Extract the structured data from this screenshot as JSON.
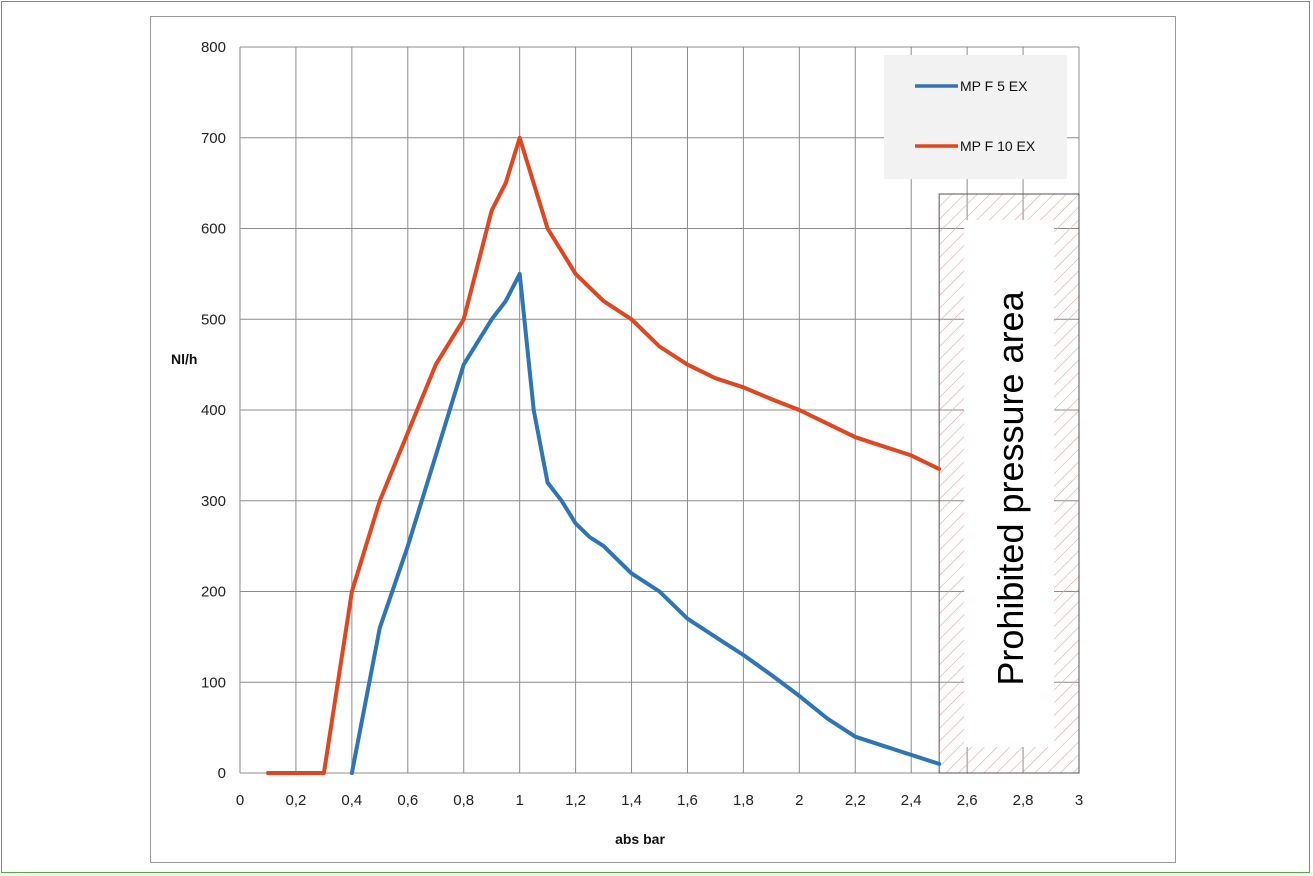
{
  "chart_data": {
    "type": "line",
    "xlabel": "abs bar",
    "ylabel": "Nl/h",
    "xlim": [
      0,
      3
    ],
    "ylim": [
      0,
      800
    ],
    "grid": true,
    "legend_position": "top-right",
    "x_ticks": [
      0,
      0.2,
      0.4,
      0.6,
      0.8,
      1,
      1.2,
      1.4,
      1.6,
      1.8,
      2,
      2.2,
      2.4,
      2.6,
      2.8,
      3
    ],
    "x_tick_labels": [
      "0",
      "0,2",
      "0,4",
      "0,6",
      "0,8",
      "1",
      "1,2",
      "1,4",
      "1,6",
      "1,8",
      "2",
      "2,2",
      "2,4",
      "2,6",
      "2,8",
      "3"
    ],
    "y_ticks": [
      0,
      100,
      200,
      300,
      400,
      500,
      600,
      700,
      800
    ],
    "y_tick_labels": [
      "0",
      "100",
      "200",
      "300",
      "400",
      "500",
      "600",
      "700",
      "800"
    ],
    "series": [
      {
        "name": "MP F 5 EX",
        "color": "#2e75b6",
        "x": [
          0.4,
          0.5,
          0.6,
          0.7,
          0.8,
          0.9,
          0.95,
          1.0,
          1.05,
          1.1,
          1.15,
          1.2,
          1.25,
          1.3,
          1.4,
          1.5,
          1.6,
          1.7,
          1.8,
          1.9,
          2.0,
          2.1,
          2.2,
          2.3,
          2.4,
          2.5
        ],
        "y": [
          0,
          160,
          250,
          350,
          450,
          500,
          520,
          550,
          400,
          320,
          300,
          275,
          260,
          250,
          220,
          200,
          170,
          150,
          130,
          108,
          85,
          60,
          40,
          30,
          20,
          10
        ]
      },
      {
        "name": "MP F 10 EX",
        "color": "#e0461f",
        "x": [
          0.1,
          0.2,
          0.3,
          0.4,
          0.5,
          0.6,
          0.7,
          0.8,
          0.9,
          0.95,
          1.0,
          1.1,
          1.2,
          1.3,
          1.4,
          1.5,
          1.6,
          1.7,
          1.8,
          1.9,
          2.0,
          2.1,
          2.2,
          2.3,
          2.4,
          2.5
        ],
        "y": [
          0,
          0,
          0,
          200,
          300,
          375,
          450,
          500,
          620,
          650,
          700,
          600,
          550,
          520,
          500,
          470,
          450,
          435,
          425,
          412,
          400,
          385,
          370,
          360,
          350,
          335
        ]
      }
    ],
    "annotations": [
      {
        "text": "Prohibited pressure area",
        "x_range": [
          2.5,
          3.0
        ]
      }
    ]
  }
}
